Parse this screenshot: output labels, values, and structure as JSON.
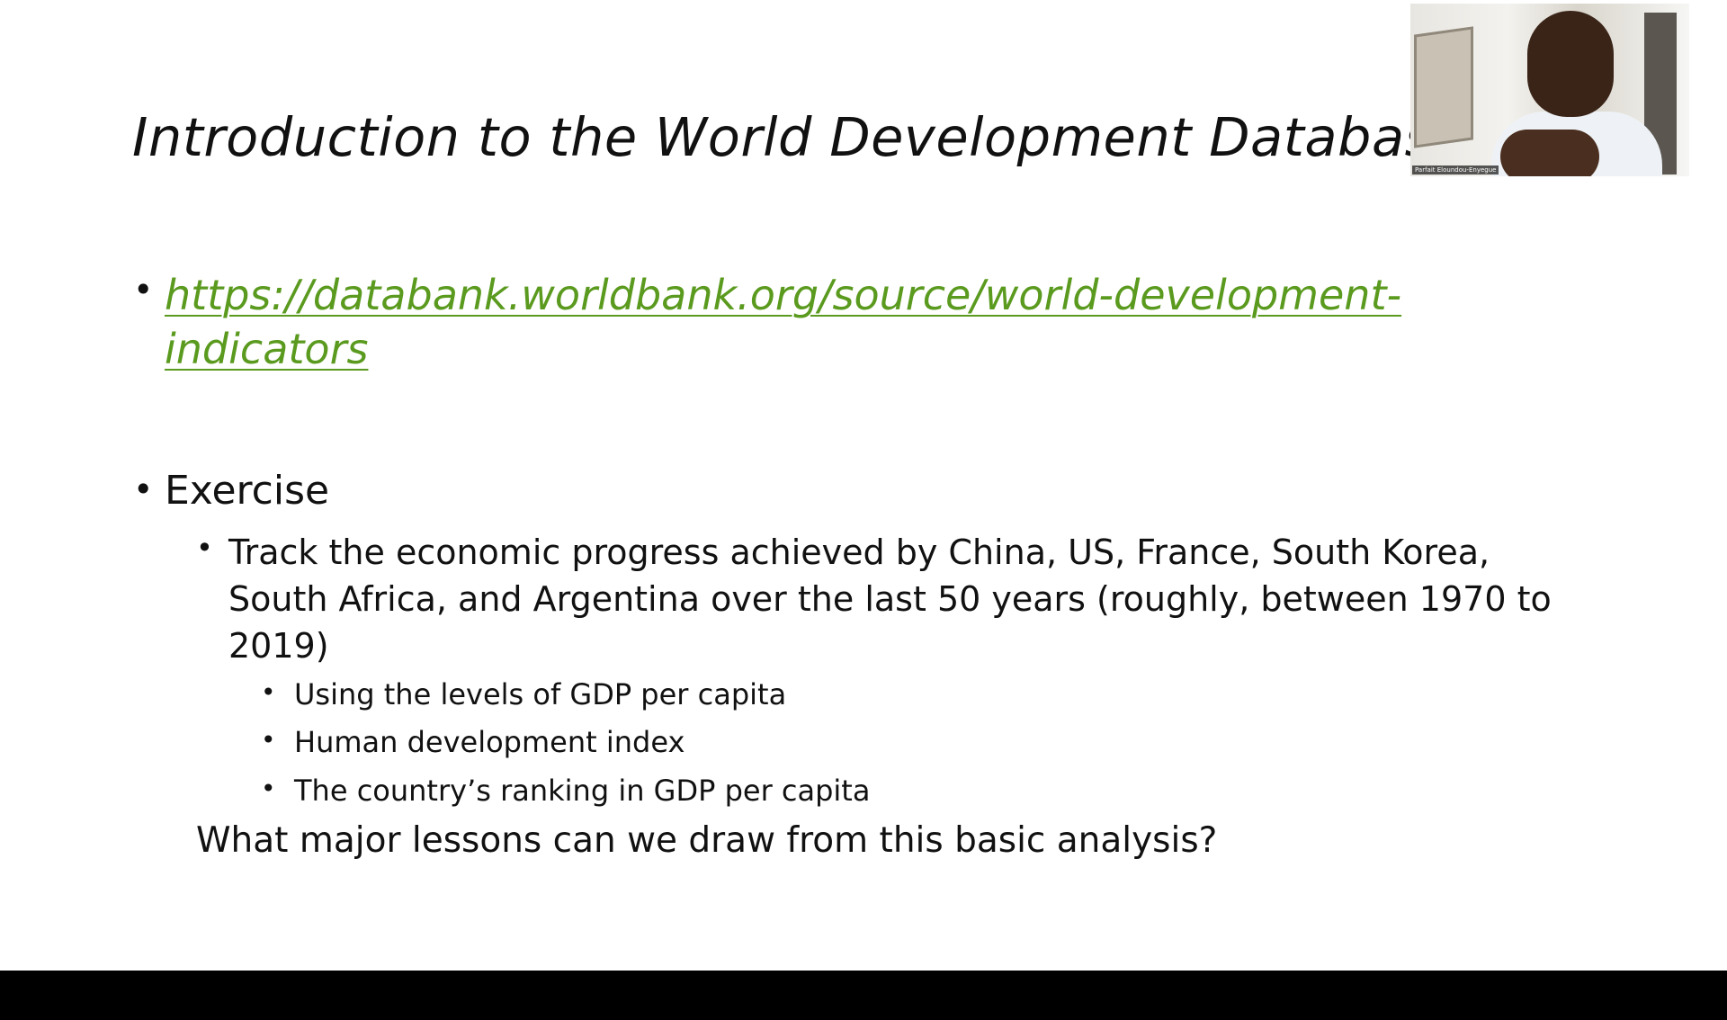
{
  "slide": {
    "title": "Introduction to the World Development Database",
    "bullet_glyph": "•",
    "link": "https://databank.worldbank.org/source/world-development-indicators",
    "exercise_label": "Exercise",
    "exercise_task": "Track the economic progress achieved by China, US, France, South Korea, South Africa, and Argentina over the last 50 years (roughly, between 1970 to 2019)",
    "sub_bullets": [
      "Using the levels of GDP per capita",
      "Human development index",
      "The country’s ranking in GDP per capita"
    ],
    "question": "What major lessons can we draw from this basic analysis?"
  },
  "video_feed": {
    "participant_name": "Parfait Eloundou-Enyegue"
  },
  "colors": {
    "link": "#5a9a1e",
    "text": "#111111",
    "slide_background": "#ffffff",
    "letterbox": "#000000"
  }
}
